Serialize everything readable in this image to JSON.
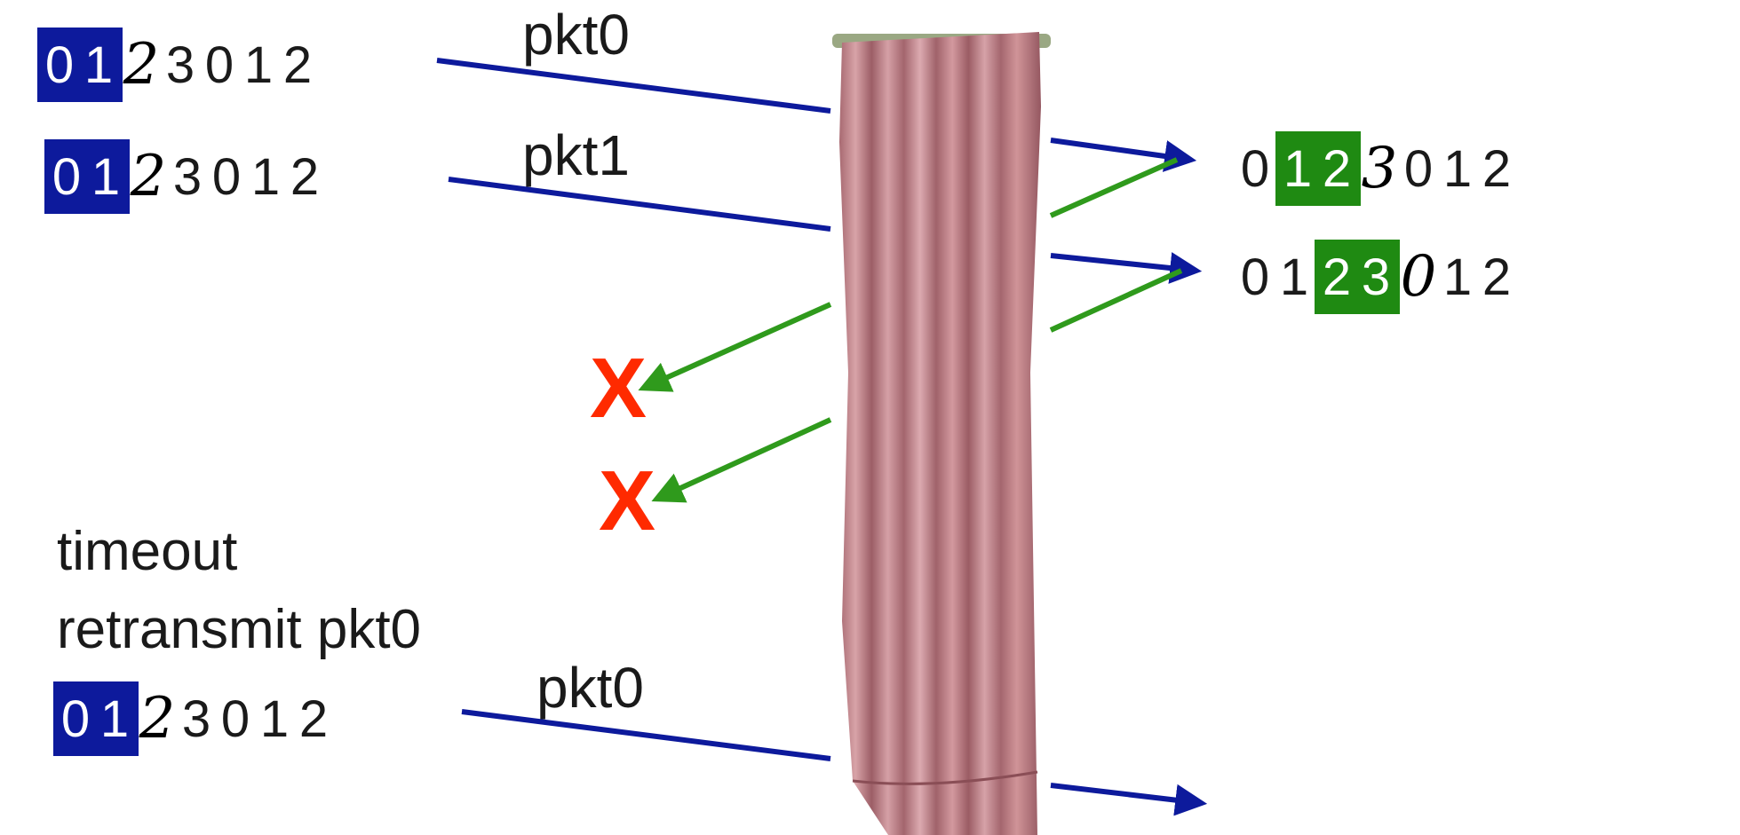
{
  "sender": {
    "rows": [
      {
        "id": "row1",
        "digits": [
          "0",
          "1",
          "2",
          "3",
          "0",
          "1",
          "2"
        ],
        "window": [
          0,
          1
        ]
      },
      {
        "id": "row2",
        "digits": [
          "0",
          "1",
          "2",
          "3",
          "0",
          "1",
          "2"
        ],
        "window": [
          0,
          1
        ]
      },
      {
        "id": "row3",
        "digits": [
          "0",
          "1",
          "2",
          "3",
          "0",
          "1",
          "2"
        ],
        "window": [
          0,
          1
        ]
      }
    ]
  },
  "receiver": {
    "rows": [
      {
        "id": "rrow1",
        "digits": [
          "0",
          "1",
          "2",
          "3",
          "0",
          "1",
          "2"
        ],
        "window": [
          1,
          2
        ]
      },
      {
        "id": "rrow2",
        "digits": [
          "0",
          "1",
          "2",
          "3",
          "0",
          "1",
          "2"
        ],
        "window": [
          2,
          3
        ]
      }
    ]
  },
  "packets": {
    "label_1": "pkt0",
    "label_2": "pkt1",
    "label_3": "pkt0"
  },
  "lost_mark": "X",
  "timeout_note": {
    "line1": "timeout",
    "line2": "retransmit pkt0"
  },
  "colors": {
    "sender_window": "#0d1a9c",
    "receiver_window": "#1f8a12",
    "data_arrow": "#0d1a9c",
    "ack_arrow": "#2f9a1c",
    "lost": "#ff2a00",
    "curtain": "#c98b90"
  },
  "icons": {
    "curtain": "curtain-icon",
    "lost": "lost-x-icon"
  }
}
